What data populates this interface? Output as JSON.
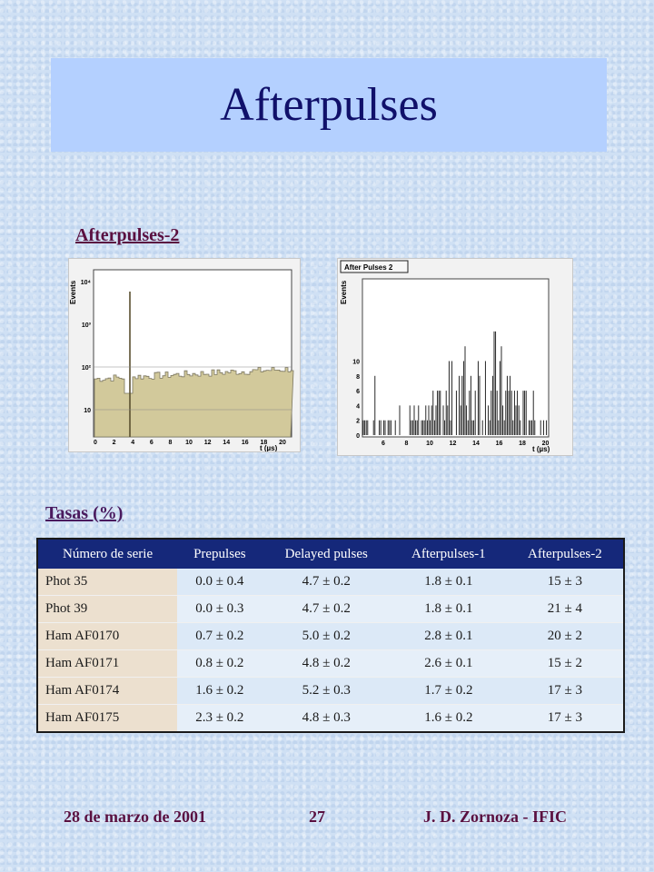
{
  "slide": {
    "title": "Afterpulses",
    "subtitle_plots": "Afterpulses-2",
    "table_caption": "Tasas (%)"
  },
  "plots": {
    "left": {
      "y_label": "Events",
      "x_label": "t (µs)",
      "y_ticks": [
        "10",
        "10²",
        "10³",
        "10⁴"
      ],
      "x_ticks": [
        "0",
        "2",
        "4",
        "6",
        "8",
        "10",
        "12",
        "14",
        "16",
        "18",
        "20"
      ]
    },
    "right": {
      "panel_title": "After Pulses 2",
      "y_label": "Events",
      "x_label": "t (µs)",
      "y_ticks": [
        "0",
        "2",
        "4",
        "6",
        "8",
        "10"
      ],
      "x_ticks": [
        "6",
        "8",
        "10",
        "12",
        "14",
        "16",
        "18",
        "20"
      ]
    }
  },
  "table": {
    "headers": [
      "Número de serie",
      "Prepulses",
      "Delayed pulses",
      "Afterpulses-1",
      "Afterpulses-2"
    ],
    "rows": [
      [
        "Phot 35",
        "0.0 ± 0.4",
        "4.7 ± 0.2",
        "1.8 ± 0.1",
        "15 ± 3"
      ],
      [
        "Phot 39",
        "0.0 ± 0.3",
        "4.7 ± 0.2",
        "1.8 ± 0.1",
        "21 ± 4"
      ],
      [
        "Ham AF0170",
        "0.7 ± 0.2",
        "5.0 ± 0.2",
        "2.8 ± 0.1",
        "20 ± 2"
      ],
      [
        "Ham AF0171",
        "0.8 ± 0.2",
        "4.8 ± 0.2",
        "2.6 ± 0.1",
        "15 ± 2"
      ],
      [
        "Ham AF0174",
        "1.6 ± 0.2",
        "5.2 ± 0.3",
        "1.7 ± 0.2",
        "17 ± 3"
      ],
      [
        "Ham AF0175",
        "2.3 ± 0.2",
        "4.8 ± 0.3",
        "1.6 ± 0.2",
        "17 ± 3"
      ]
    ]
  },
  "footer": {
    "date": "28 de marzo de 2001",
    "page": "27",
    "author": "J. D. Zornoza - IFIC"
  },
  "colors": {
    "title_band": "#b4d0ff",
    "title_text": "#10106a",
    "header_bg": "#15287a",
    "serie_bg": "#ece0cf",
    "value_bg": "#dce9f7",
    "accent_text": "#5a1040",
    "hist_fill": "#d2c99b"
  }
}
